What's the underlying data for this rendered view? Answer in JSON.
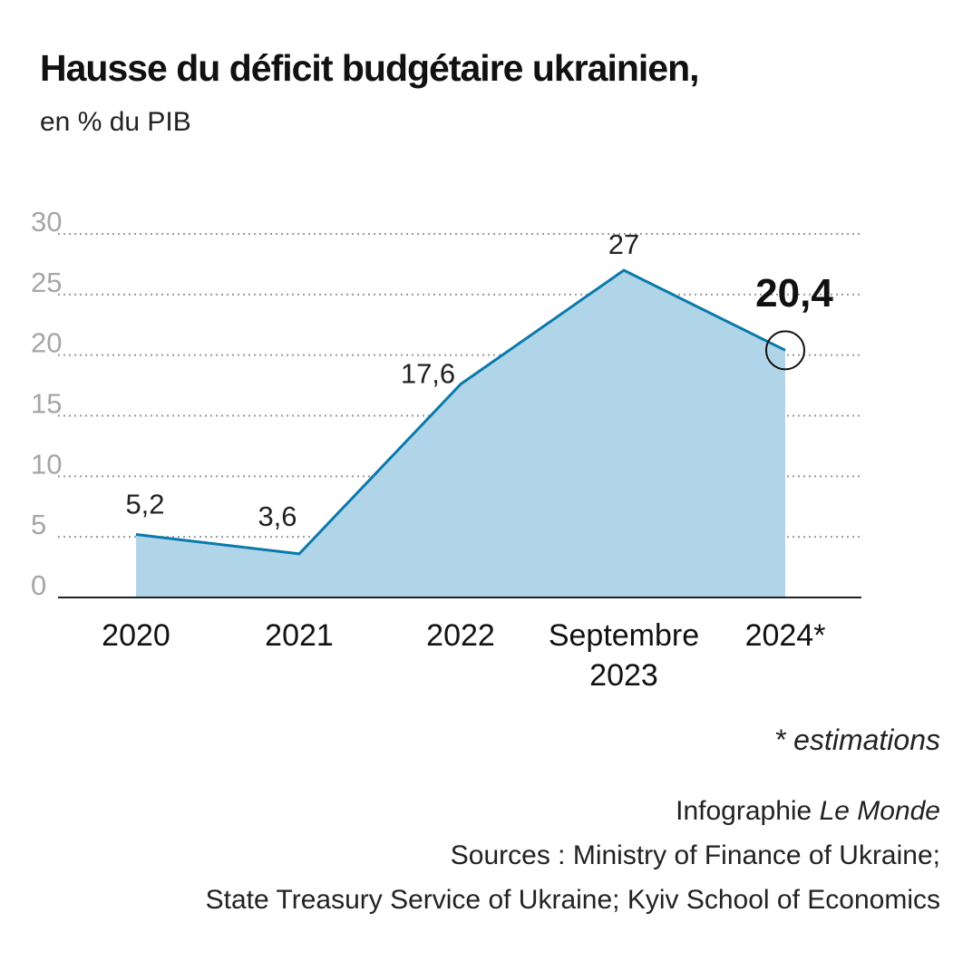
{
  "header": {
    "title": "Hausse du déficit budgétaire ukrainien,",
    "subtitle": "en % du PIB"
  },
  "chart_data": {
    "type": "area",
    "categories": [
      "2020",
      "2021",
      "2022",
      "Septembre 2023",
      "2024*"
    ],
    "category_lines": [
      [
        "2020"
      ],
      [
        "2021"
      ],
      [
        "2022"
      ],
      [
        "Septembre",
        "2023"
      ],
      [
        "2024*"
      ]
    ],
    "values": [
      5.2,
      3.6,
      17.6,
      27,
      20.4
    ],
    "value_labels": [
      "5,2",
      "3,6",
      "17,6",
      "27",
      "20,4"
    ],
    "highlight_index": 4,
    "ylim": [
      0,
      30
    ],
    "yticks": [
      0,
      5,
      10,
      15,
      20,
      25,
      30
    ],
    "grid": "dotted horizontal",
    "colors": {
      "fill": "#b1d5e8",
      "line": "#0a7aaa",
      "grid": "#999999",
      "tick": "#a6a6a6",
      "baseline": "#222222"
    }
  },
  "footnote": "* estimations",
  "credits": {
    "infographie_prefix": "Infographie ",
    "infographie_name": "Le Monde",
    "sources_line1": "Sources : Ministry of Finance of Ukraine;",
    "sources_line2": "State Treasury Service of Ukraine; Kyiv School of Economics"
  }
}
